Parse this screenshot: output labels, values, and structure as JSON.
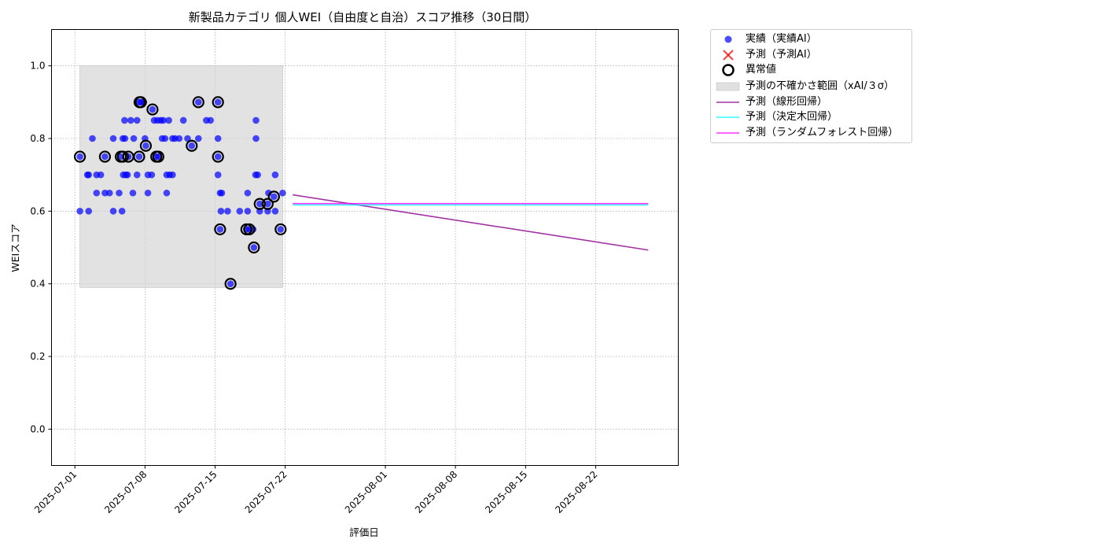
{
  "chart_data": {
    "type": "scatter",
    "title": "新製品カテゴリ 個人WEI（自由度と自治）スコア推移（30日間）",
    "xlabel": "評価日",
    "ylabel": "WEIスコア",
    "xlim": [
      "2024-06-28T16:00",
      "2025-08-30T06:00"
    ],
    "ylim": [
      -0.1,
      1.1
    ],
    "x_ticks": [
      "2025-07-01",
      "2025-07-08",
      "2025-07-15",
      "2025-07-22",
      "2025-08-01",
      "2025-08-08",
      "2025-08-15",
      "2025-08-22"
    ],
    "y_ticks": [
      "0.0",
      "0.2",
      "0.4",
      "0.6",
      "0.8",
      "1.0"
    ],
    "grid": true,
    "legend_placement": "outside-upper-right",
    "colors": {
      "actual": "#0000ff",
      "predicted": "#ff0000",
      "anomaly": "#000000",
      "uncertainty": "#d3d3d3",
      "linear": "#8b008b",
      "tree": "#00ffff",
      "forest": "#ff00ff"
    },
    "series": [
      {
        "name": "実績（実績AI）",
        "kind": "scatter",
        "points": [
          [
            "2025-07-01 12:00",
            0.75
          ],
          [
            "2025-07-01 12:00",
            0.6
          ],
          [
            "2025-07-02 06:00",
            0.7
          ],
          [
            "2025-07-02 09:00",
            0.6
          ],
          [
            "2025-07-02 09:00",
            0.7
          ],
          [
            "2025-07-02 18:00",
            0.8
          ],
          [
            "2025-07-03 04:00",
            0.65
          ],
          [
            "2025-07-03 04:00",
            0.7
          ],
          [
            "2025-07-03 14:00",
            0.7
          ],
          [
            "2025-07-04 00:00",
            0.75
          ],
          [
            "2025-07-04 00:00",
            0.65
          ],
          [
            "2025-07-04 11:00",
            0.65
          ],
          [
            "2025-07-04 20:00",
            0.8
          ],
          [
            "2025-07-04 20:00",
            0.6
          ],
          [
            "2025-07-05 10:00",
            0.65
          ],
          [
            "2025-07-05 14:00",
            0.75
          ],
          [
            "2025-07-05 17:00",
            0.6
          ],
          [
            "2025-07-05 19:00",
            0.8
          ],
          [
            "2025-07-05 20:00",
            0.7
          ],
          [
            "2025-07-05 23:00",
            0.85
          ],
          [
            "2025-07-06 00:00",
            0.8
          ],
          [
            "2025-07-06 02:00",
            0.7
          ],
          [
            "2025-07-06 06:00",
            0.7
          ],
          [
            "2025-07-06 08:00",
            0.75
          ],
          [
            "2025-07-06 14:00",
            0.85
          ],
          [
            "2025-07-06 19:00",
            0.65
          ],
          [
            "2025-07-06 21:00",
            0.8
          ],
          [
            "2025-07-07 05:00",
            0.7
          ],
          [
            "2025-07-07 05:00",
            0.85
          ],
          [
            "2025-07-07 10:00",
            0.75
          ],
          [
            "2025-07-07 11:00",
            0.9
          ],
          [
            "2025-07-07 14:00",
            0.9
          ],
          [
            "2025-07-07 21:00",
            0.9
          ],
          [
            "2025-07-08 00:00",
            0.8
          ],
          [
            "2025-07-08 02:00",
            0.78
          ],
          [
            "2025-07-08 07:00",
            0.65
          ],
          [
            "2025-07-08 07:00",
            0.7
          ],
          [
            "2025-07-08 16:00",
            0.7
          ],
          [
            "2025-07-08 18:00",
            0.88
          ],
          [
            "2025-07-08 22:00",
            0.85
          ],
          [
            "2025-07-09 03:00",
            0.75
          ],
          [
            "2025-07-09 06:00",
            0.85
          ],
          [
            "2025-07-09 08:00",
            0.75
          ],
          [
            "2025-07-09 14:00",
            0.85
          ],
          [
            "2025-07-09 17:00",
            0.8
          ],
          [
            "2025-07-09 20:00",
            0.85
          ],
          [
            "2025-07-10 00:00",
            0.8
          ],
          [
            "2025-07-10 04:00",
            0.65
          ],
          [
            "2025-07-10 04:00",
            0.7
          ],
          [
            "2025-07-10 09:00",
            0.85
          ],
          [
            "2025-07-10 11:00",
            0.7
          ],
          [
            "2025-07-10 18:00",
            0.8
          ],
          [
            "2025-07-10 18:00",
            0.7
          ],
          [
            "2025-07-11 00:00",
            0.8
          ],
          [
            "2025-07-11 10:00",
            0.8
          ],
          [
            "2025-07-11 20:00",
            0.85
          ],
          [
            "2025-07-12 06:00",
            0.8
          ],
          [
            "2025-07-12 16:00",
            0.78
          ],
          [
            "2025-07-13 08:00",
            0.9
          ],
          [
            "2025-07-13 08:00",
            0.8
          ],
          [
            "2025-07-14 03:00",
            0.85
          ],
          [
            "2025-07-14 13:00",
            0.85
          ],
          [
            "2025-07-15 07:00",
            0.9
          ],
          [
            "2025-07-15 07:00",
            0.8
          ],
          [
            "2025-07-15 07:00",
            0.75
          ],
          [
            "2025-07-15 07:00",
            0.7
          ],
          [
            "2025-07-15 12:00",
            0.65
          ],
          [
            "2025-07-15 12:00",
            0.55
          ],
          [
            "2025-07-15 14:00",
            0.6
          ],
          [
            "2025-07-15 16:00",
            0.65
          ],
          [
            "2025-07-16 06:00",
            0.6
          ],
          [
            "2025-07-16 13:00",
            0.4
          ],
          [
            "2025-07-17 11:00",
            0.6
          ],
          [
            "2025-07-18 03:00",
            0.55
          ],
          [
            "2025-07-18 06:00",
            0.65
          ],
          [
            "2025-07-18 06:00",
            0.6
          ],
          [
            "2025-07-18 10:00",
            0.55
          ],
          [
            "2025-07-18 19:00",
            0.55
          ],
          [
            "2025-07-18 21:00",
            0.5
          ],
          [
            "2025-07-19 01:00",
            0.7
          ],
          [
            "2025-07-19 02:00",
            0.8
          ],
          [
            "2025-07-19 02:00",
            0.85
          ],
          [
            "2025-07-19 06:00",
            0.7
          ],
          [
            "2025-07-19 11:00",
            0.62
          ],
          [
            "2025-07-19 11:00",
            0.6
          ],
          [
            "2025-07-20 06:00",
            0.62
          ],
          [
            "2025-07-20 06:00",
            0.6
          ],
          [
            "2025-07-20 08:00",
            0.65
          ],
          [
            "2025-07-20 21:00",
            0.64
          ],
          [
            "2025-07-21 00:00",
            0.6
          ],
          [
            "2025-07-21 00:00",
            0.7
          ],
          [
            "2025-07-21 13:00",
            0.55
          ],
          [
            "2025-07-21 18:00",
            0.65
          ]
        ]
      },
      {
        "name": "予測（予測AI）",
        "kind": "scatter",
        "points": []
      },
      {
        "name": "異常値",
        "kind": "ring",
        "points": [
          [
            "2025-07-01 12:00",
            0.75
          ],
          [
            "2025-07-04 00:00",
            0.75
          ],
          [
            "2025-07-05 14:00",
            0.75
          ],
          [
            "2025-07-05 19:00",
            0.75
          ],
          [
            "2025-07-06 08:00",
            0.75
          ],
          [
            "2025-07-07 10:00",
            0.75
          ],
          [
            "2025-07-07 11:00",
            0.9
          ],
          [
            "2025-07-07 14:00",
            0.9
          ],
          [
            "2025-07-08 02:00",
            0.78
          ],
          [
            "2025-07-08 18:00",
            0.88
          ],
          [
            "2025-07-09 03:00",
            0.75
          ],
          [
            "2025-07-09 08:00",
            0.75
          ],
          [
            "2025-07-12 16:00",
            0.78
          ],
          [
            "2025-07-13 08:00",
            0.9
          ],
          [
            "2025-07-15 07:00",
            0.9
          ],
          [
            "2025-07-15 07:00",
            0.75
          ],
          [
            "2025-07-15 12:00",
            0.55
          ],
          [
            "2025-07-16 13:00",
            0.4
          ],
          [
            "2025-07-18 03:00",
            0.55
          ],
          [
            "2025-07-18 10:00",
            0.55
          ],
          [
            "2025-07-18 21:00",
            0.5
          ],
          [
            "2025-07-19 11:00",
            0.62
          ],
          [
            "2025-07-20 06:00",
            0.62
          ],
          [
            "2025-07-20 21:00",
            0.64
          ],
          [
            "2025-07-21 13:00",
            0.55
          ]
        ]
      },
      {
        "name": "予測の不確かさ範囲（xAI/３σ）",
        "kind": "band",
        "x": [
          "2025-07-01 12:00",
          "2025-07-21 18:00"
        ],
        "y": [
          0.39,
          1.0
        ]
      },
      {
        "name": "予測（線形回帰）",
        "kind": "line",
        "points": [
          [
            "2025-07-22 18:00",
            0.645
          ],
          [
            "2025-08-27 06:00",
            0.493
          ]
        ]
      },
      {
        "name": "予測（決定木回帰）",
        "kind": "line",
        "points": [
          [
            "2025-07-22 18:00",
            0.617
          ],
          [
            "2025-08-27 06:00",
            0.617
          ]
        ]
      },
      {
        "name": "予測（ランダムフォレスト回帰）",
        "kind": "line",
        "points": [
          [
            "2025-07-22 18:00",
            0.621
          ],
          [
            "2025-08-27 06:00",
            0.621
          ]
        ]
      }
    ]
  }
}
